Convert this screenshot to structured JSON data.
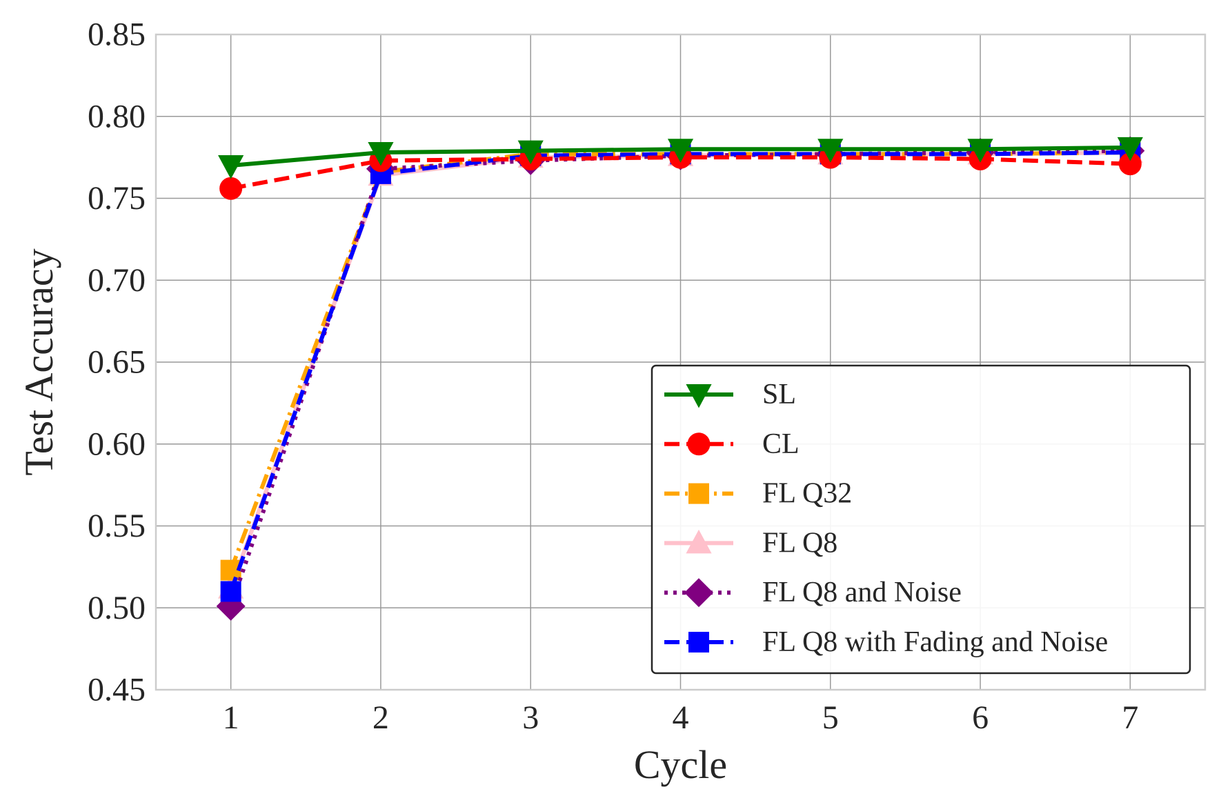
{
  "chart_data": {
    "type": "line",
    "title": "",
    "xlabel": "Cycle",
    "ylabel": "Test Accuracy",
    "x": [
      1,
      2,
      3,
      4,
      5,
      6,
      7
    ],
    "xlim": [
      0.5,
      7.5
    ],
    "ylim": [
      0.45,
      0.85
    ],
    "xticks": [
      "1",
      "2",
      "3",
      "4",
      "5",
      "6",
      "7"
    ],
    "yticks": [
      "0.45",
      "0.50",
      "0.55",
      "0.60",
      "0.65",
      "0.70",
      "0.75",
      "0.80",
      "0.85"
    ],
    "grid": true,
    "legend_position": "bottom-right",
    "series": [
      {
        "name": "SL",
        "color": "#008000",
        "dash": "solid",
        "marker": "triangle-down",
        "values": [
          0.77,
          0.778,
          0.779,
          0.78,
          0.78,
          0.78,
          0.781
        ]
      },
      {
        "name": "CL",
        "color": "#ff0000",
        "dash": "dashed",
        "marker": "circle",
        "values": [
          0.756,
          0.773,
          0.774,
          0.775,
          0.775,
          0.774,
          0.771
        ]
      },
      {
        "name": "FL Q32",
        "color": "#ffa500",
        "dash": "dashdot",
        "marker": "square",
        "values": [
          0.523,
          0.766,
          0.777,
          0.777,
          0.777,
          0.777,
          0.778
        ]
      },
      {
        "name": "FL Q8",
        "color": "#ffc0cb",
        "dash": "solid",
        "marker": "triangle-up",
        "values": [
          0.512,
          0.764,
          0.775,
          0.776,
          0.777,
          0.777,
          0.778
        ]
      },
      {
        "name": "FL Q8 and Noise",
        "color": "#800080",
        "dash": "dotted",
        "marker": "diamond",
        "values": [
          0.501,
          0.768,
          0.773,
          0.776,
          0.777,
          0.778,
          0.779
        ]
      },
      {
        "name": "FL Q8 with Fading and Noise",
        "color": "#0000ff",
        "dash": "dashed",
        "marker": "square",
        "values": [
          0.51,
          0.765,
          0.776,
          0.777,
          0.777,
          0.777,
          0.778
        ]
      }
    ]
  }
}
